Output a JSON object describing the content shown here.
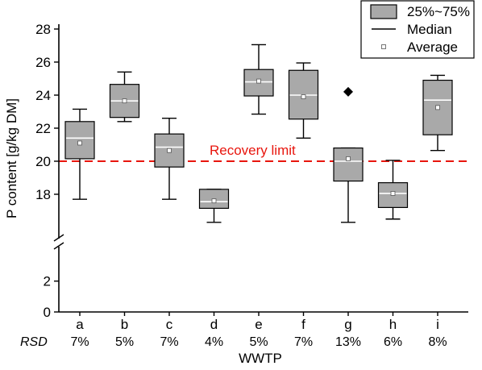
{
  "chart_data": {
    "type": "box",
    "xlabel": "WWTP",
    "ylabel": "P content [g/kg DM]",
    "y_axis_break": true,
    "y_segments": [
      {
        "range": [
          0,
          3.5
        ],
        "ticks": [
          0,
          2
        ]
      },
      {
        "range": [
          16,
          28
        ],
        "ticks": [
          18,
          20,
          22,
          24,
          26,
          28
        ]
      }
    ],
    "row_label": "RSD",
    "categories": [
      "a",
      "b",
      "c",
      "d",
      "e",
      "f",
      "g",
      "h",
      "i"
    ],
    "rsd": [
      "7%",
      "5%",
      "7%",
      "4%",
      "5%",
      "7%",
      "13%",
      "6%",
      "8%"
    ],
    "series": [
      {
        "boxes": [
          {
            "whisker_low": 17.7,
            "q1": 20.15,
            "median": 21.4,
            "q3": 22.4,
            "whisker_high": 23.15,
            "average": 21.1
          },
          {
            "whisker_low": 22.4,
            "q1": 22.65,
            "median": 23.65,
            "q3": 24.65,
            "whisker_high": 25.4,
            "average": 23.65
          },
          {
            "whisker_low": 17.7,
            "q1": 19.65,
            "median": 20.85,
            "q3": 21.65,
            "whisker_high": 22.6,
            "average": 20.65
          },
          {
            "whisker_low": 16.3,
            "q1": 17.15,
            "median": 17.55,
            "q3": 18.3,
            "whisker_high": 18.3,
            "average": 17.6
          },
          {
            "whisker_low": 22.85,
            "q1": 23.95,
            "median": 24.8,
            "q3": 25.55,
            "whisker_high": 27.05,
            "average": 24.85
          },
          {
            "whisker_low": 21.4,
            "q1": 22.55,
            "median": 24.0,
            "q3": 25.5,
            "whisker_high": 25.95,
            "average": 23.9
          },
          {
            "whisker_low": 16.3,
            "q1": 18.8,
            "median": 20.0,
            "q3": 20.8,
            "whisker_high": 20.8,
            "average": 20.15,
            "outliers": [
              24.2
            ]
          },
          {
            "whisker_low": 16.5,
            "q1": 17.2,
            "median": 18.05,
            "q3": 18.7,
            "whisker_high": 20.05,
            "average": 18.05
          },
          {
            "whisker_low": 20.65,
            "q1": 21.6,
            "median": 23.7,
            "q3": 24.9,
            "whisker_high": 25.2,
            "average": 23.25
          }
        ]
      }
    ],
    "reference_line": {
      "value": 20,
      "label": "Recovery limit",
      "color": "#e8150d"
    },
    "legend": {
      "position": "top-right",
      "items": [
        {
          "label": "25%~75%",
          "symbol": "box"
        },
        {
          "label": "Median",
          "symbol": "line"
        },
        {
          "label": "Average",
          "symbol": "square"
        }
      ]
    },
    "colors": {
      "box_fill": "#a9a9a9",
      "median_line": "#ffffff",
      "axis": "#000000"
    }
  }
}
